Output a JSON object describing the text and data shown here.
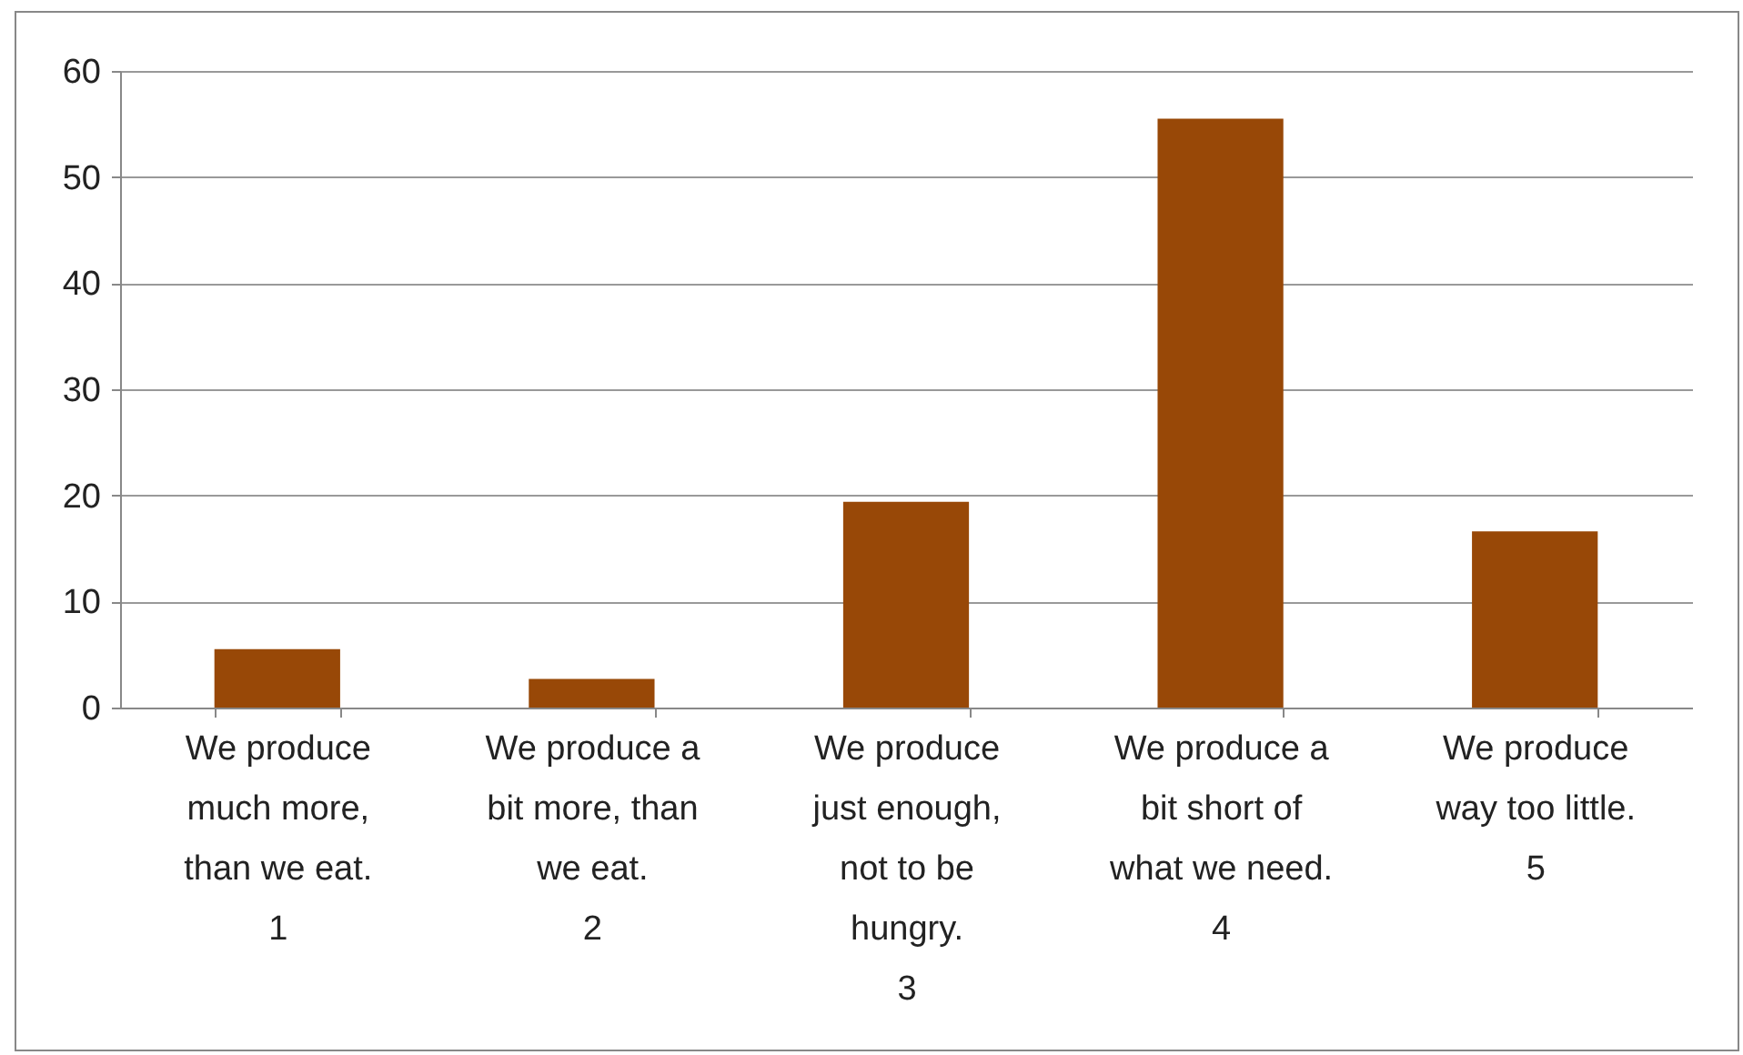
{
  "chart_data": {
    "type": "bar",
    "categories": [
      "We produce\nmuch more,\nthan we eat.\n1",
      "We produce a\nbit more, than\nwe eat.\n2",
      "We produce\njust enough,\nnot to be\nhungry.\n3",
      "We produce a\nbit short of\nwhat we need.\n4",
      "We produce\nway too little.\n5"
    ],
    "values": [
      5.5,
      2.7,
      19.4,
      55.5,
      16.6
    ],
    "color": "#984807",
    "ylim": [
      0,
      60
    ],
    "yticks": [
      0,
      10,
      20,
      30,
      40,
      50,
      60
    ],
    "grid": "y"
  }
}
